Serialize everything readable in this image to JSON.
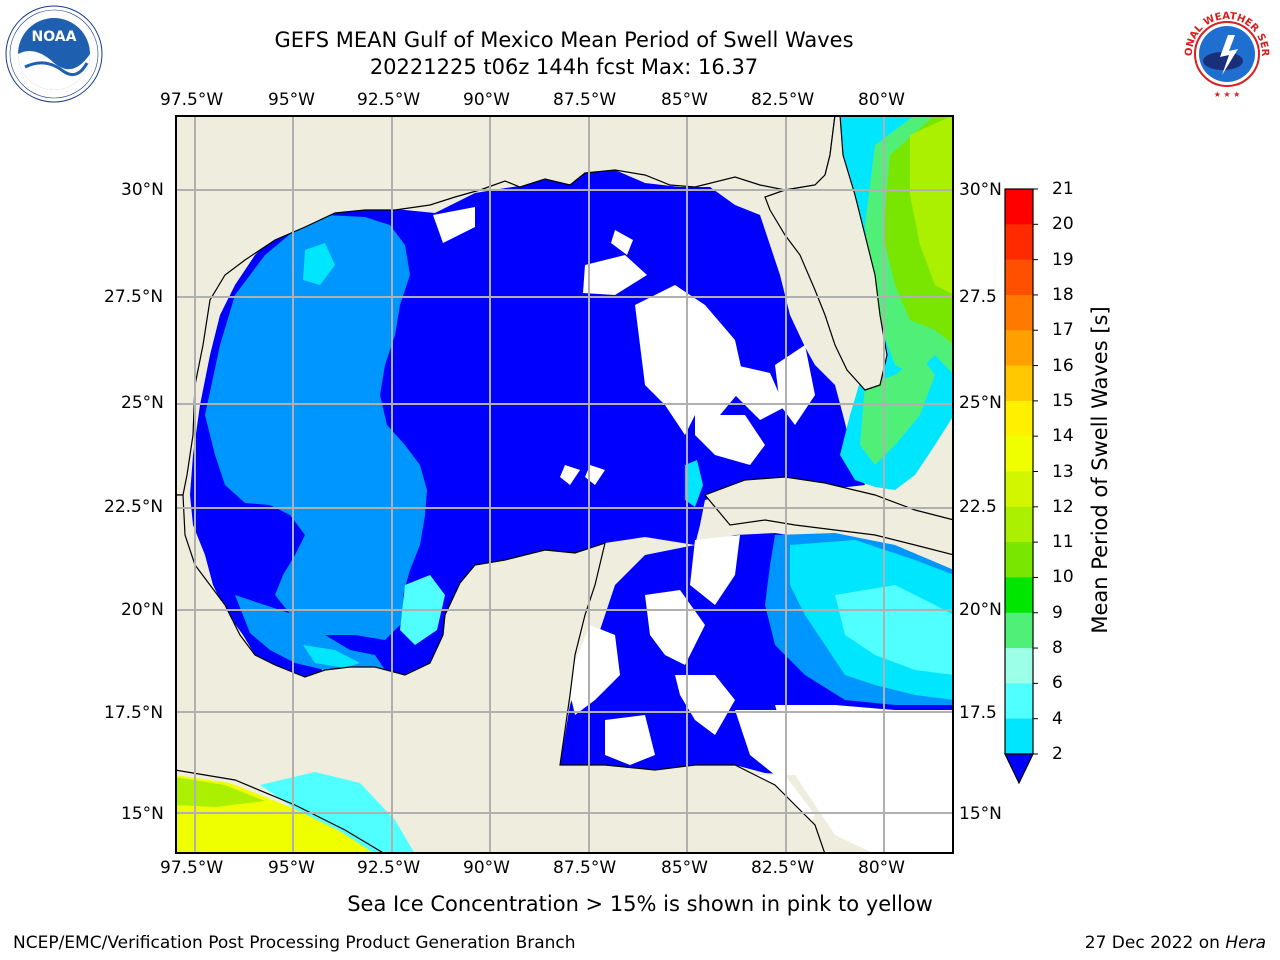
{
  "title_line1": "GEFS MEAN Gulf of Mexico Mean Period of Swell Waves",
  "title_line2": "20221225 t06z 144h fcst   Max: 16.37",
  "lon_labels": [
    "97.5°W",
    "95°W",
    "92.5°W",
    "90°W",
    "87.5°W",
    "85°W",
    "82.5°W",
    "80°W"
  ],
  "lat_labels_left": [
    "30°N",
    "27.5°N",
    "25°N",
    "22.5°N",
    "20°N",
    "17.5°N",
    "15°N"
  ],
  "lat_labels_right": [
    "30°N",
    "27.5",
    "25°N",
    "22.5",
    "20°N",
    "17.5",
    "15°N"
  ],
  "colorbar": {
    "label": "Mean Period of Swell Waves [s]",
    "ticks": [
      "21",
      "20",
      "19",
      "18",
      "17",
      "16",
      "15",
      "14",
      "13",
      "12",
      "11",
      "10",
      "9",
      "8",
      "6",
      "4",
      "2"
    ],
    "colors": [
      "#ff0000",
      "#ff2a00",
      "#ff5000",
      "#ff7800",
      "#ffa000",
      "#ffc800",
      "#fff000",
      "#f0ff00",
      "#d2f500",
      "#aaf000",
      "#78e600",
      "#00e600",
      "#50f078",
      "#9cffe8",
      "#50ffff",
      "#00e6ff",
      "#0096ff",
      "#0000ff"
    ]
  },
  "caption": "Sea Ice Concentration > 15% is shown in pink to yellow",
  "footer_left": "NCEP/EMC/Verification Post Processing Product Generation Branch",
  "footer_date": "27 Dec 2022 on ",
  "footer_host": "Hera",
  "logos": {
    "noaa": "NOAA",
    "nws": "NATIONAL WEATHER SERVICE"
  }
}
